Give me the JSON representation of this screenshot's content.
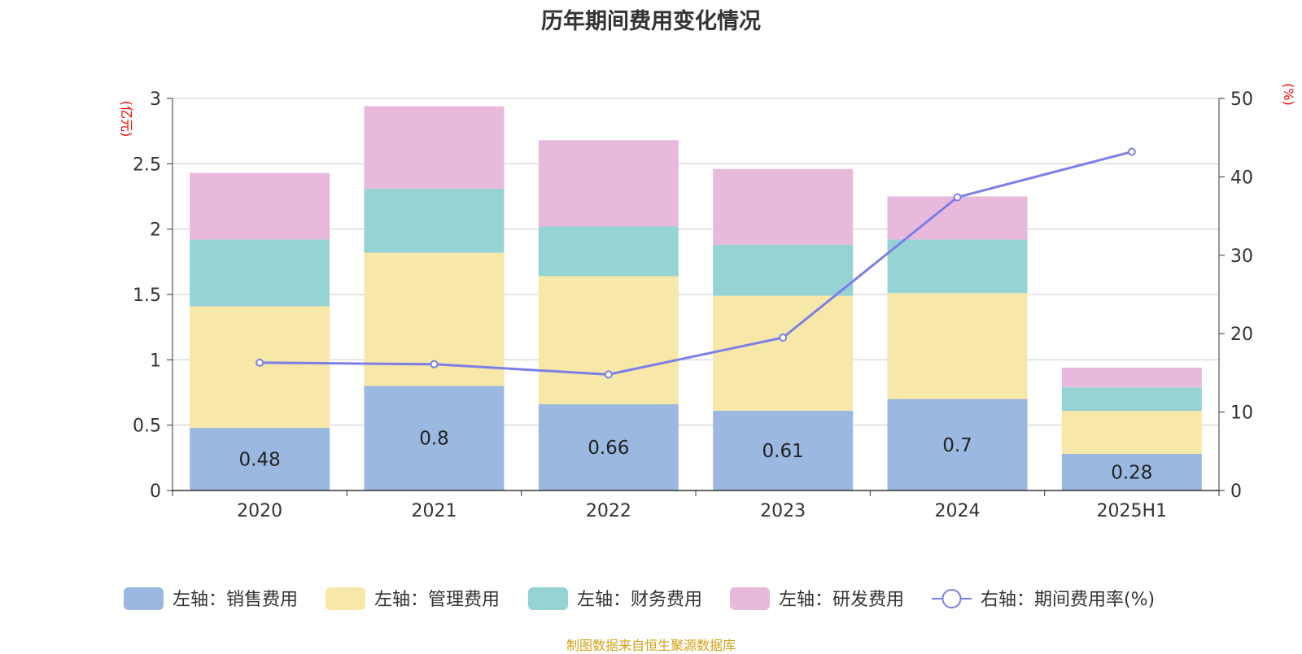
{
  "title": "历年期间费用变化情况",
  "source": "制图数据来自恒生聚源数据库",
  "chart_data": {
    "type": "bar",
    "stacked": true,
    "title": "历年期间费用变化情况",
    "categories": [
      "2020",
      "2021",
      "2022",
      "2023",
      "2024",
      "2025H1"
    ],
    "y_left": {
      "unit": "(亿元)",
      "ylim": [
        0,
        3
      ],
      "ticks": [
        "0",
        "0.5",
        "1",
        "1.5",
        "2",
        "2.5",
        "3"
      ]
    },
    "y_right": {
      "unit": "(%)",
      "ylim": [
        0,
        50
      ],
      "ticks": [
        "0",
        "10",
        "20",
        "30",
        "40",
        "50"
      ]
    },
    "grid": true,
    "legend_position": "bottom",
    "series": [
      {
        "name": "左轴：销售费用",
        "type": "bar",
        "axis": "left",
        "color": "#9bb8e1",
        "values": [
          0.48,
          0.8,
          0.66,
          0.61,
          0.7,
          0.28
        ],
        "labels": [
          "0.48",
          "0.8",
          "0.66",
          "0.61",
          "0.7",
          "0.28"
        ]
      },
      {
        "name": "左轴：管理费用",
        "type": "bar",
        "axis": "left",
        "color": "#f7e7a8",
        "values": [
          0.93,
          1.02,
          0.98,
          0.88,
          0.81,
          0.33
        ]
      },
      {
        "name": "左轴：财务费用",
        "type": "bar",
        "axis": "left",
        "color": "#96d3d4",
        "values": [
          0.51,
          0.49,
          0.38,
          0.39,
          0.41,
          0.18
        ]
      },
      {
        "name": "左轴：研发费用",
        "type": "bar",
        "axis": "left",
        "color": "#e8b9da",
        "values": [
          0.51,
          0.63,
          0.66,
          0.58,
          0.33,
          0.15
        ]
      },
      {
        "name": "右轴：期间费用率(%)",
        "type": "line",
        "axis": "right",
        "color": "#7b7fe8",
        "values": [
          16.3,
          16.1,
          14.8,
          19.5,
          37.4,
          43.2
        ]
      }
    ]
  }
}
